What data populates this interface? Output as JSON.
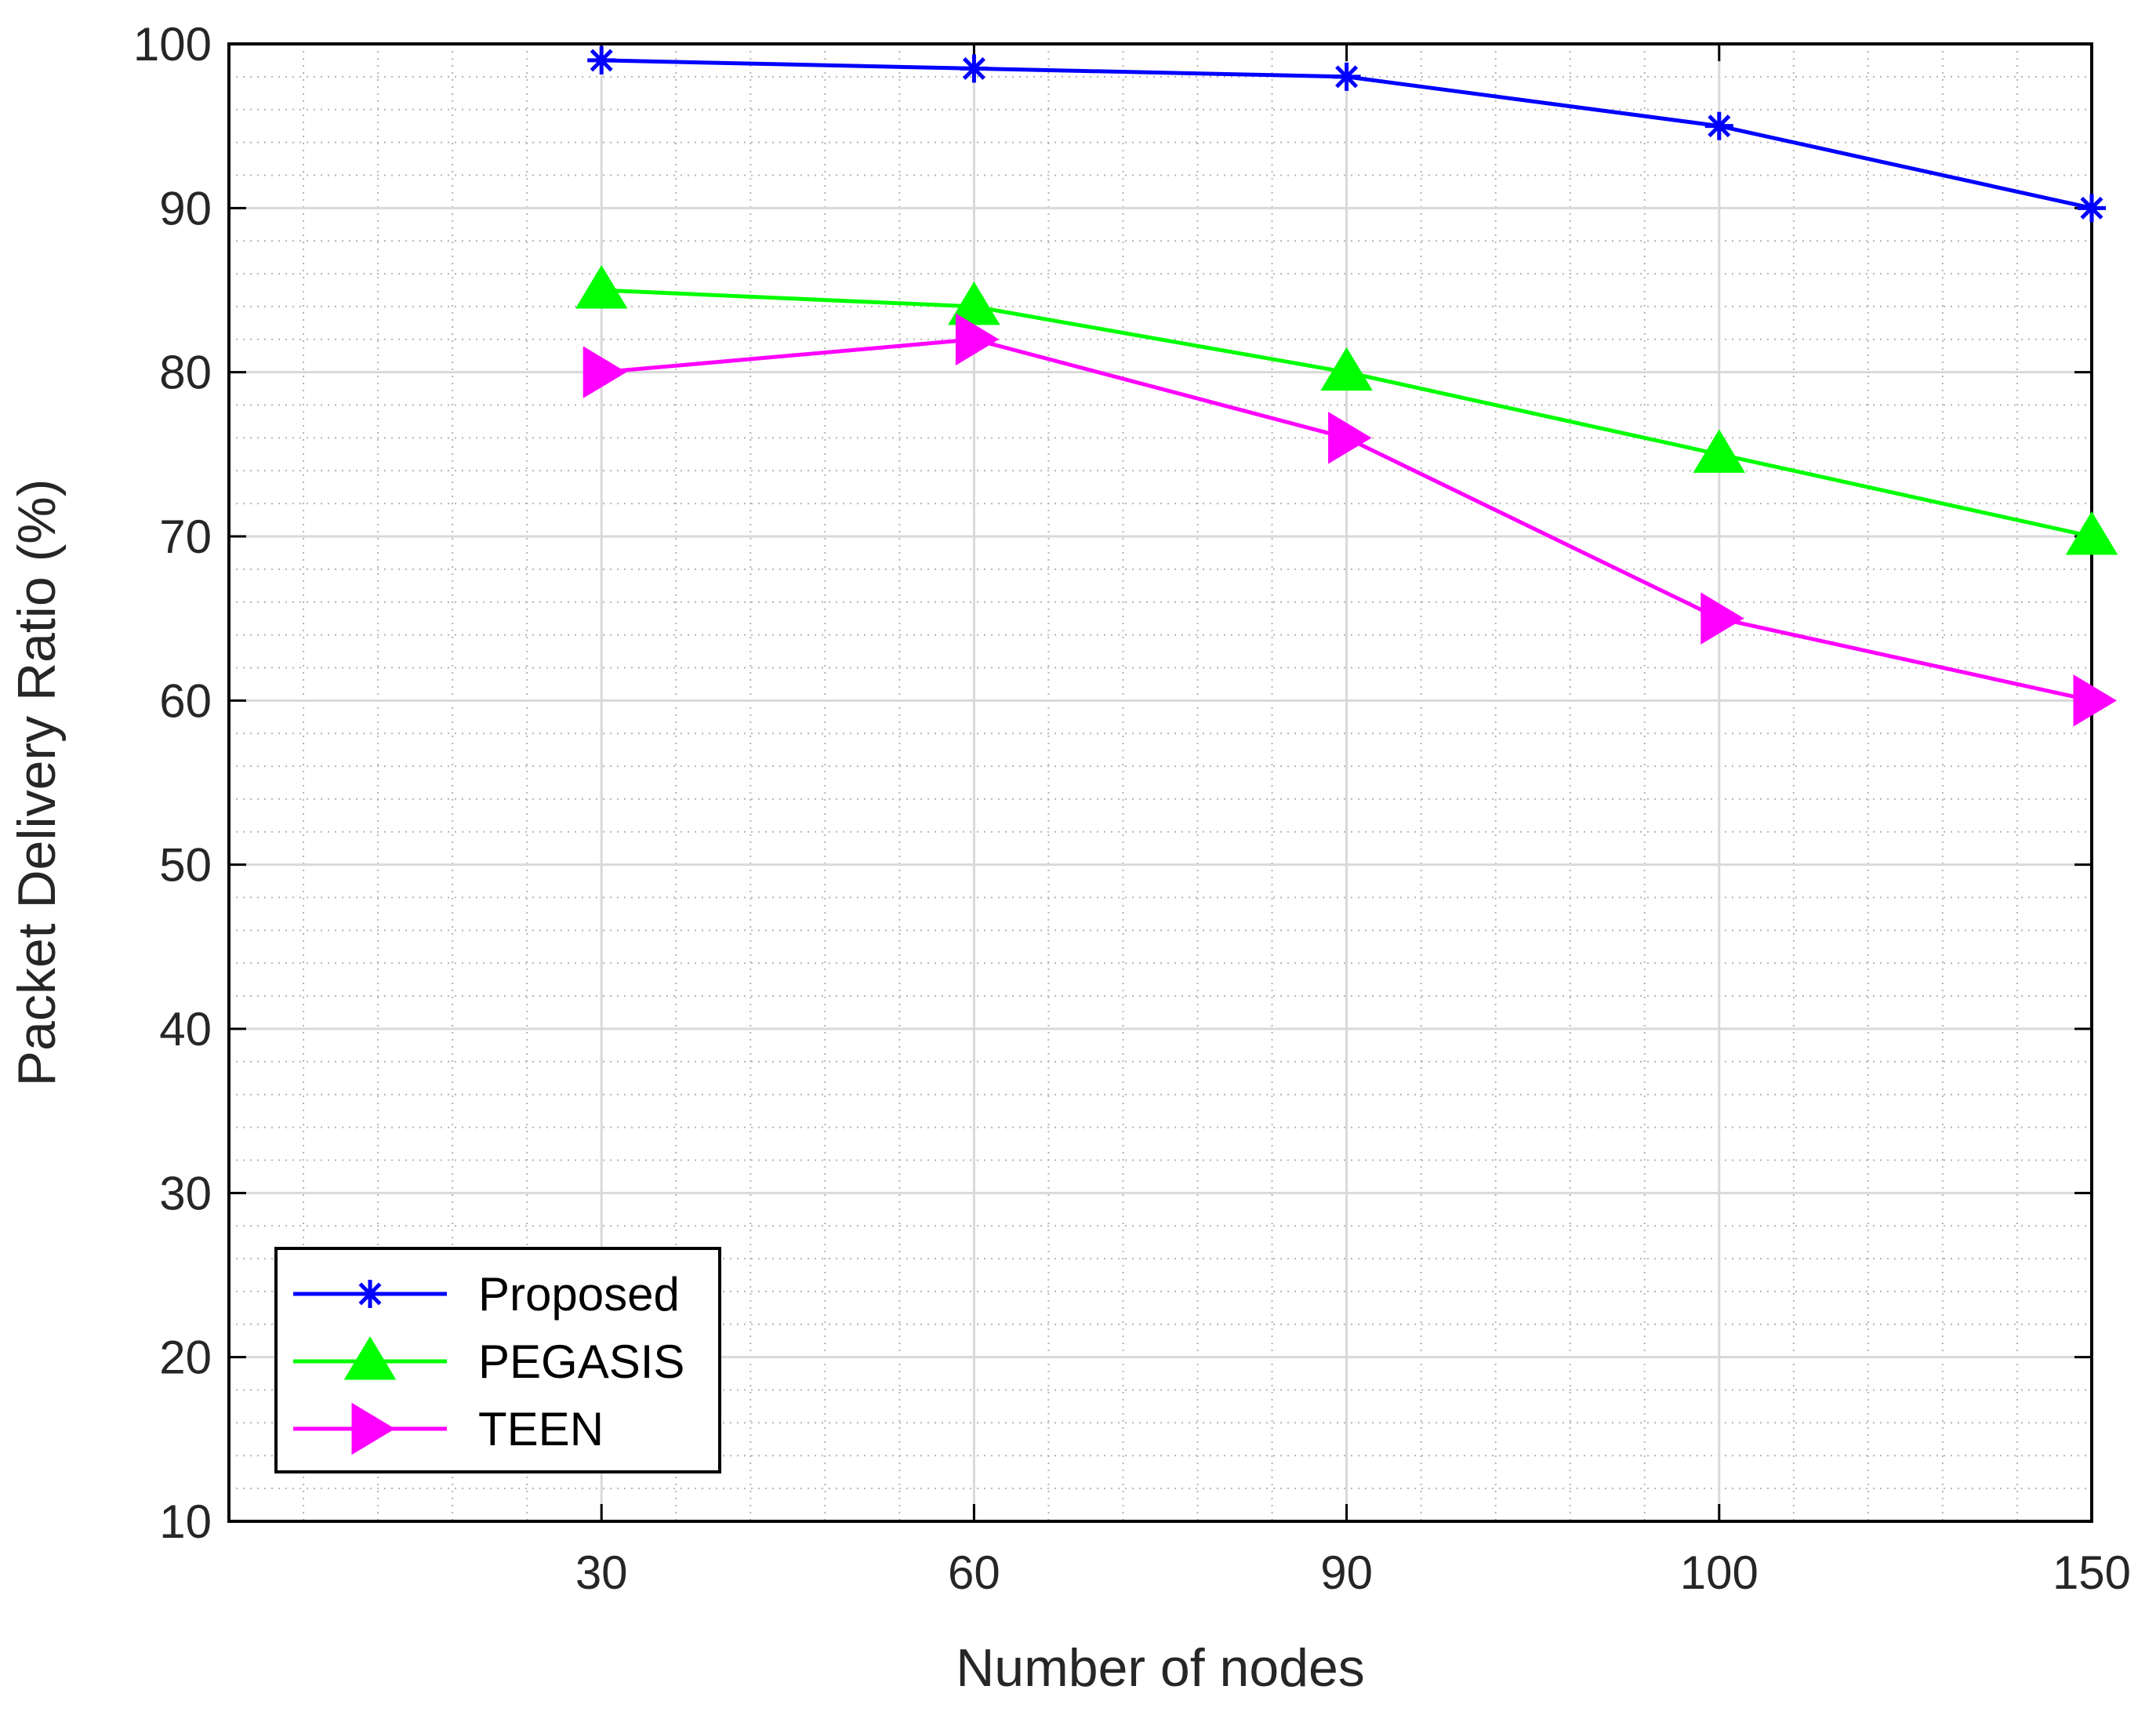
{
  "chart_data": {
    "type": "line",
    "categories": [
      "30",
      "60",
      "90",
      "100",
      "150"
    ],
    "xlabel": "Number of nodes",
    "ylabel": "Packet Delivery Ratio (%)",
    "ylim": [
      10,
      100
    ],
    "yticks": [
      10,
      20,
      30,
      40,
      50,
      60,
      70,
      80,
      90,
      100
    ],
    "grid": true,
    "minor_grid": true,
    "legend_position": "bottom-left",
    "series": [
      {
        "name": "Proposed",
        "values": [
          99,
          98.5,
          98,
          95,
          90
        ],
        "color": "#0000ff",
        "marker": "asterisk"
      },
      {
        "name": "PEGASIS",
        "values": [
          85,
          84,
          80,
          75,
          70
        ],
        "color": "#00ff00",
        "marker": "triangle-up"
      },
      {
        "name": "TEEN",
        "values": [
          80,
          82,
          76,
          65,
          60
        ],
        "color": "#ff00ff",
        "marker": "triangle-right"
      }
    ]
  }
}
